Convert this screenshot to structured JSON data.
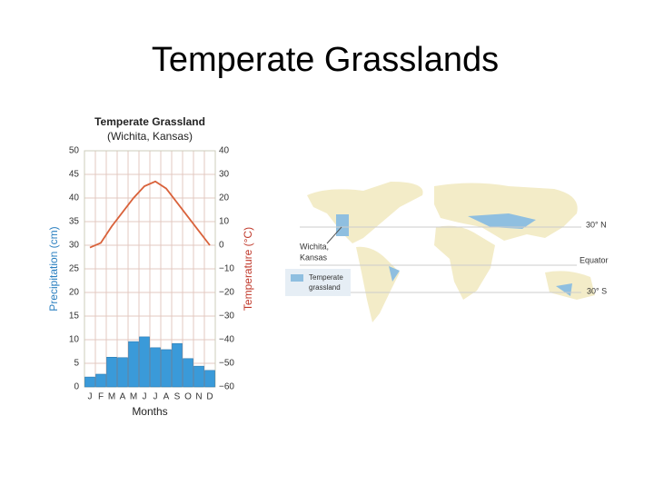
{
  "slide_title": "Temperate Grasslands",
  "chart_data": {
    "type": "bar",
    "title": "Temperate Grassland",
    "subtitle": "(Wichita, Kansas)",
    "x_label": "Months",
    "y_label": "Precipitation (cm)",
    "y2_label": "Temperature (°C)",
    "categories": [
      "J",
      "F",
      "M",
      "A",
      "M",
      "J",
      "J",
      "A",
      "S",
      "O",
      "N",
      "D"
    ],
    "series": [
      {
        "type": "bar",
        "color": "#3a9ad9",
        "values": [
          2.1,
          2.7,
          6.3,
          6.2,
          9.6,
          10.6,
          8.3,
          7.9,
          9.2,
          6.0,
          4.4,
          3.5
        ]
      },
      {
        "type": "line",
        "axis": "y2",
        "color": "#d9623b",
        "values": [
          -1,
          1,
          8,
          14,
          20,
          25,
          27,
          24,
          18,
          12,
          6,
          0
        ]
      }
    ],
    "ylim": [
      0,
      50
    ],
    "yticks": [
      0,
      5,
      10,
      15,
      20,
      25,
      30,
      35,
      40,
      45,
      50
    ],
    "y2lim": [
      -60,
      40
    ],
    "y2ticks": [
      {
        "value": -60,
        "label": "−60"
      },
      {
        "value": -50,
        "label": "−50"
      },
      {
        "value": -40,
        "label": "−40"
      },
      {
        "value": -30,
        "label": "−30"
      },
      {
        "value": -20,
        "label": "−20"
      },
      {
        "value": -10,
        "label": "−10"
      },
      0,
      10,
      20,
      30,
      40
    ],
    "grid": true
  },
  "map": {
    "city_label": [
      "Wichita,",
      "Kansas"
    ],
    "lat_30n": "30° N",
    "equator": "Equator",
    "lat_30s": "30° S",
    "legend": [
      "Temperate",
      "grassland"
    ]
  }
}
